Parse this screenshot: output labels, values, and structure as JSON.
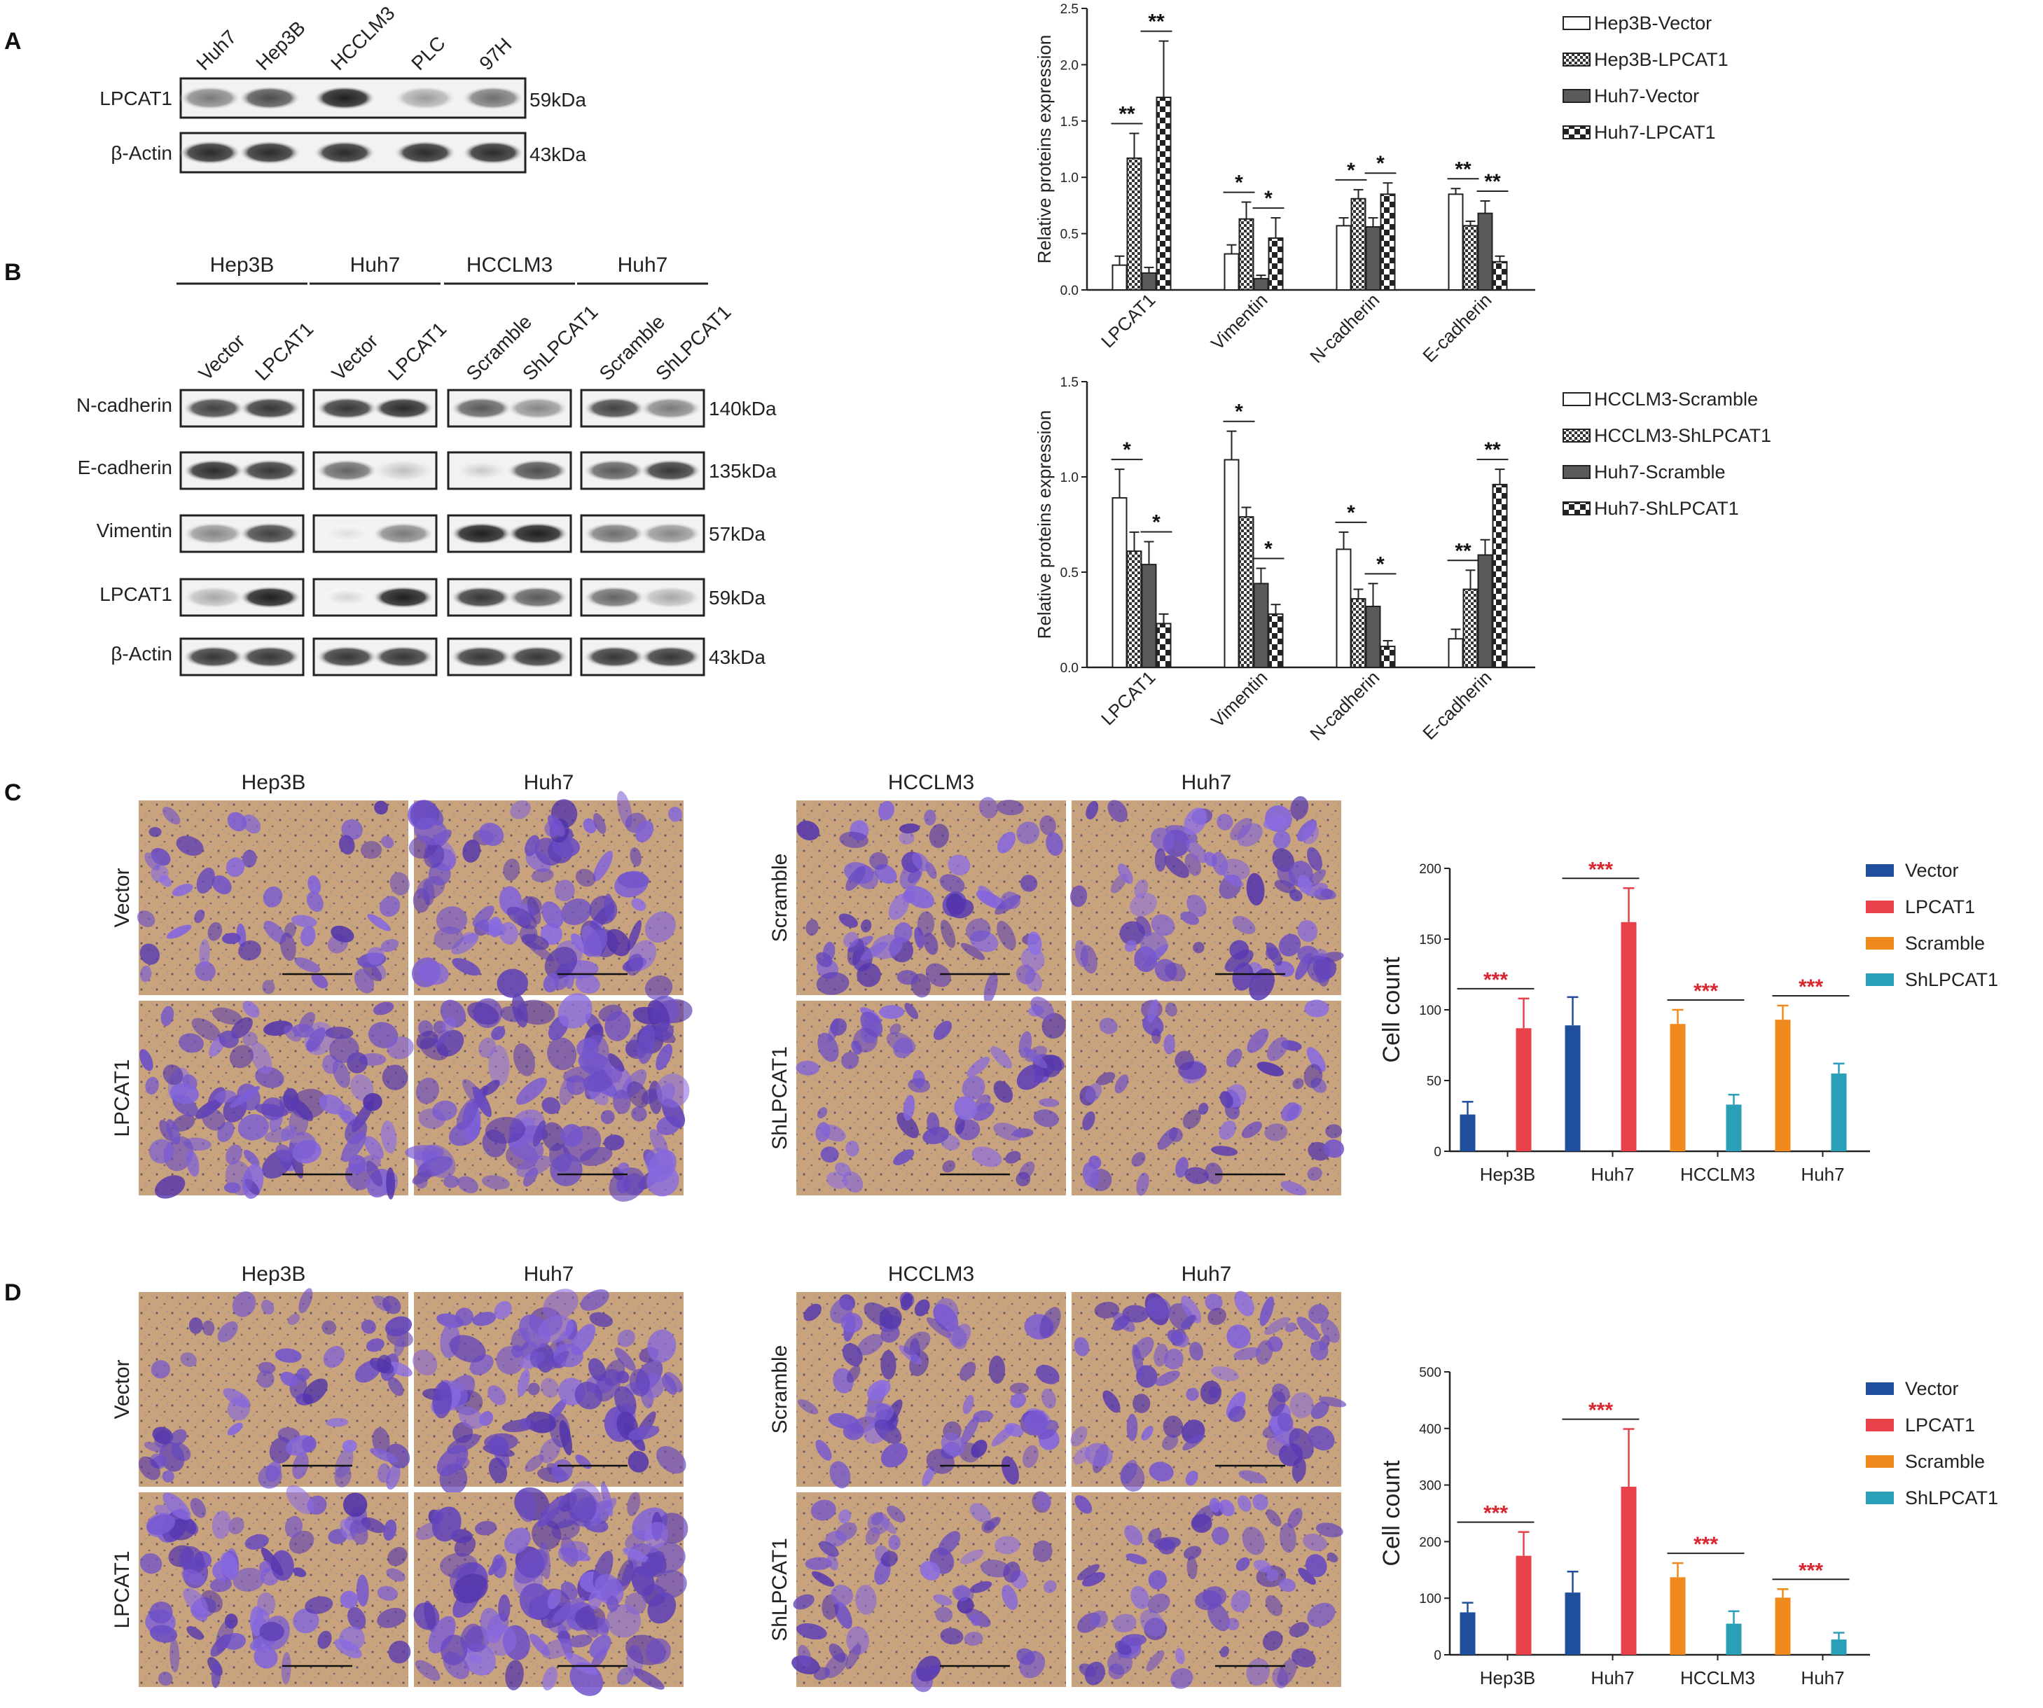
{
  "panel_labels": {
    "a": "A",
    "b": "B",
    "c": "C",
    "d": "D"
  },
  "colors": {
    "vector": "#1f4e9c",
    "lpcat1": "#e8414a",
    "scramble": "#f08a1c",
    "shlpcat1": "#2aa0b8",
    "sig_red": "#d9262e"
  },
  "panelA": {
    "lanes": [
      "Huh7",
      "Hep3B",
      "HCCLM3",
      "PLC",
      "97H"
    ],
    "rows": [
      "LPCAT1",
      "β-Actin"
    ],
    "sizes": [
      "59kDa",
      "43kDa"
    ],
    "intensities": [
      [
        0.55,
        0.75,
        0.95,
        0.4,
        0.6
      ],
      [
        0.9,
        0.9,
        0.9,
        0.9,
        0.9
      ]
    ]
  },
  "panelB": {
    "groups": [
      "Hep3B",
      "Huh7",
      "HCCLM3",
      "Huh7"
    ],
    "lanes": [
      "Vector",
      "LPCAT1",
      "Vector",
      "LPCAT1",
      "Scramble",
      "ShLPCAT1",
      "Scramble",
      "ShLPCAT1"
    ],
    "rows": [
      "N-cadherin",
      "E-cadherin",
      "Vimentin",
      "LPCAT1",
      "β-Actin"
    ],
    "sizes": [
      "140kDa",
      "135kDa",
      "57kDa",
      "59kDa",
      "43kDa"
    ],
    "intensities": [
      [
        0.8,
        0.85,
        0.85,
        0.9,
        0.7,
        0.5,
        0.8,
        0.55
      ],
      [
        0.9,
        0.85,
        0.65,
        0.25,
        0.2,
        0.75,
        0.7,
        0.85
      ],
      [
        0.5,
        0.8,
        0.1,
        0.55,
        0.95,
        0.95,
        0.6,
        0.5
      ],
      [
        0.35,
        0.95,
        0.15,
        0.95,
        0.85,
        0.7,
        0.65,
        0.35
      ],
      [
        0.85,
        0.85,
        0.85,
        0.85,
        0.85,
        0.85,
        0.85,
        0.85
      ]
    ]
  },
  "chart_data": [
    {
      "type": "bar",
      "id": "b-top",
      "categories": [
        "LPCAT1",
        "Vimentin",
        "N-cadherin",
        "E-cadherin"
      ],
      "series": [
        {
          "name": "Hep3B-Vector",
          "values": [
            0.22,
            0.32,
            0.57,
            0.85
          ],
          "errors": [
            0.08,
            0.08,
            0.07,
            0.05
          ]
        },
        {
          "name": "Hep3B-LPCAT1",
          "values": [
            1.17,
            0.63,
            0.81,
            0.57
          ],
          "errors": [
            0.22,
            0.15,
            0.08,
            0.04
          ]
        },
        {
          "name": "Huh7-Vector",
          "values": [
            0.15,
            0.1,
            0.56,
            0.68
          ],
          "errors": [
            0.05,
            0.03,
            0.08,
            0.11
          ]
        },
        {
          "name": "Huh7-LPCAT1",
          "values": [
            1.71,
            0.46,
            0.85,
            0.25
          ],
          "errors": [
            0.5,
            0.18,
            0.1,
            0.05
          ]
        }
      ],
      "ylabel": "Relative proteins expression",
      "ylim": [
        0,
        2.5
      ],
      "yticks": [
        "0.0",
        "0.5",
        "1.0",
        "1.5",
        "2.0",
        "2.5"
      ],
      "significance": [
        [
          "**",
          "**"
        ],
        [
          "*",
          "*"
        ],
        [
          "*",
          "*"
        ],
        [
          "**",
          "**"
        ]
      ]
    },
    {
      "type": "bar",
      "id": "b-bottom",
      "categories": [
        "LPCAT1",
        "Vimentin",
        "N-cadherin",
        "E-cadherin"
      ],
      "series": [
        {
          "name": "HCCLM3-Scramble",
          "values": [
            0.89,
            1.09,
            0.62,
            0.15
          ],
          "errors": [
            0.15,
            0.15,
            0.09,
            0.05
          ]
        },
        {
          "name": "HCCLM3-ShLPCAT1",
          "values": [
            0.61,
            0.79,
            0.36,
            0.41
          ],
          "errors": [
            0.1,
            0.05,
            0.05,
            0.1
          ]
        },
        {
          "name": "Huh7-Scramble",
          "values": [
            0.54,
            0.44,
            0.32,
            0.59
          ],
          "errors": [
            0.12,
            0.08,
            0.12,
            0.08
          ]
        },
        {
          "name": "Huh7-ShLPCAT1",
          "values": [
            0.23,
            0.28,
            0.11,
            0.96
          ],
          "errors": [
            0.05,
            0.05,
            0.03,
            0.08
          ]
        }
      ],
      "ylabel": "Relative proteins expression",
      "ylim": [
        0,
        1.5
      ],
      "yticks": [
        "0.0",
        "0.5",
        "1.0",
        "1.5"
      ],
      "significance": [
        [
          "*",
          "*"
        ],
        [
          "*",
          "*"
        ],
        [
          "*",
          "*"
        ],
        [
          "**",
          "**"
        ]
      ]
    },
    {
      "type": "bar",
      "id": "c-chart",
      "categories": [
        "Hep3B",
        "Huh7",
        "HCCLM3",
        "Huh7"
      ],
      "series": [
        {
          "name": "Vector",
          "values": [
            26,
            89,
            null,
            null
          ],
          "errors": [
            9,
            20,
            null,
            null
          ]
        },
        {
          "name": "LPCAT1",
          "values": [
            87,
            162,
            null,
            null
          ],
          "errors": [
            21,
            24,
            null,
            null
          ]
        },
        {
          "name": "Scramble",
          "values": [
            null,
            null,
            90,
            93
          ],
          "errors": [
            null,
            null,
            10,
            10
          ]
        },
        {
          "name": "ShLPCAT1",
          "values": [
            null,
            null,
            33,
            55
          ],
          "errors": [
            null,
            null,
            7,
            7
          ]
        }
      ],
      "ylabel": "Cell count",
      "ylim": [
        0,
        200
      ],
      "yticks": [
        "0",
        "50",
        "100",
        "150",
        "200"
      ],
      "significance": [
        "***",
        "***",
        "***",
        "***"
      ]
    },
    {
      "type": "bar",
      "id": "d-chart",
      "categories": [
        "Hep3B",
        "Huh7",
        "HCCLM3",
        "Huh7"
      ],
      "series": [
        {
          "name": "Vector",
          "values": [
            75,
            110,
            null,
            null
          ],
          "errors": [
            17,
            37,
            null,
            null
          ]
        },
        {
          "name": "LPCAT1",
          "values": [
            175,
            297,
            null,
            null
          ],
          "errors": [
            42,
            102,
            null,
            null
          ]
        },
        {
          "name": "Scramble",
          "values": [
            null,
            null,
            137,
            101
          ],
          "errors": [
            null,
            null,
            25,
            15
          ]
        },
        {
          "name": "ShLPCAT1",
          "values": [
            null,
            null,
            55,
            27
          ],
          "errors": [
            null,
            null,
            22,
            12
          ]
        }
      ],
      "ylabel": "Cell count",
      "ylim": [
        0,
        500
      ],
      "yticks": [
        "0",
        "100",
        "200",
        "300",
        "400",
        "500"
      ],
      "significance": [
        "***",
        "***",
        "***",
        "***"
      ]
    }
  ],
  "panelC": {
    "left_cols": [
      "Hep3B",
      "Huh7"
    ],
    "left_rows": [
      "Vector",
      "LPCAT1"
    ],
    "right_cols": [
      "HCCLM3",
      "Huh7"
    ],
    "right_rows": [
      "Scramble",
      "ShLPCAT1"
    ],
    "density": [
      [
        0.35,
        0.8,
        0.55,
        0.6
      ],
      [
        0.8,
        1.0,
        0.45,
        0.35
      ]
    ]
  },
  "panelD": {
    "left_cols": [
      "Hep3B",
      "Huh7"
    ],
    "left_rows": [
      "Vector",
      "LPCAT1"
    ],
    "right_cols": [
      "HCCLM3",
      "Huh7"
    ],
    "right_rows": [
      "Scramble",
      "ShLPCAT1"
    ],
    "density": [
      [
        0.45,
        0.8,
        0.55,
        0.6
      ],
      [
        0.7,
        1.0,
        0.45,
        0.5
      ]
    ]
  }
}
